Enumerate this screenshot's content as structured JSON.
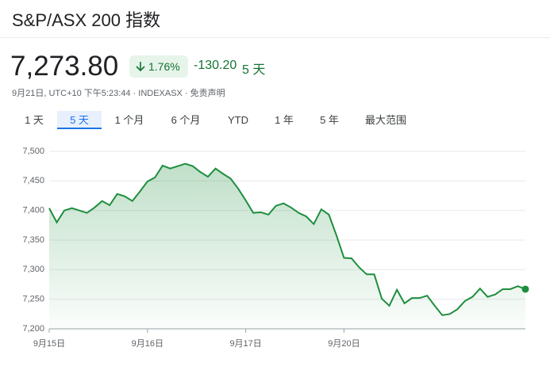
{
  "header": {
    "title": "S&P/ASX 200 指数",
    "price": "7,273.80",
    "change_percent": "1.76%",
    "change": "-130.20",
    "period": "5 天",
    "meta": "9月21日, UTC+10 下午5:23:44 · INDEXASX · 免责声明"
  },
  "tabs": [
    "1 天",
    "5 天",
    "1 个月",
    "6 个月",
    "YTD",
    "1 年",
    "5 年",
    "最大范围"
  ],
  "chart_data": {
    "type": "line",
    "categories": [
      "9月15日",
      null,
      null,
      null,
      null,
      null,
      null,
      null,
      null,
      null,
      null,
      null,
      null,
      "9月16日",
      null,
      null,
      null,
      null,
      null,
      null,
      null,
      null,
      null,
      null,
      null,
      null,
      "9月17日",
      null,
      null,
      null,
      null,
      null,
      null,
      null,
      null,
      null,
      null,
      null,
      null,
      "9月20日",
      null,
      null,
      null,
      null,
      null,
      null,
      null,
      null,
      null,
      null,
      null,
      null,
      null,
      null,
      null,
      null,
      null,
      null,
      null,
      null,
      null,
      null,
      null,
      null
    ],
    "series": [
      {
        "name": "S&P/ASX 200",
        "color": "#1e8e3e",
        "values": [
          7404,
          7380,
          7400,
          7404,
          7400,
          7396,
          7405,
          7416,
          7409,
          7428,
          7424,
          7416,
          7432,
          7449,
          7456,
          7476,
          7471,
          7475,
          7479,
          7475,
          7465,
          7457,
          7471,
          7462,
          7454,
          7437,
          7417,
          7396,
          7397,
          7393,
          7408,
          7412,
          7405,
          7396,
          7390,
          7377,
          7402,
          7393,
          7358,
          7320,
          7319,
          7304,
          7292,
          7292,
          7251,
          7239,
          7266,
          7243,
          7252,
          7252,
          7256,
          7239,
          7223,
          7225,
          7233,
          7247,
          7254,
          7268,
          7254,
          7258,
          7267,
          7267,
          7272,
          7267
        ]
      }
    ],
    "ylim": [
      7200,
      7500
    ],
    "yticks": [
      {
        "value": 7200,
        "label": "7,200"
      },
      {
        "value": 7250,
        "label": "7,250"
      },
      {
        "value": 7300,
        "label": "7,300"
      },
      {
        "value": 7350,
        "label": "7,350"
      },
      {
        "value": 7400,
        "label": "7,400"
      },
      {
        "value": 7450,
        "label": "7,450"
      },
      {
        "value": 7500,
        "label": "7,500"
      }
    ],
    "grid": true
  }
}
